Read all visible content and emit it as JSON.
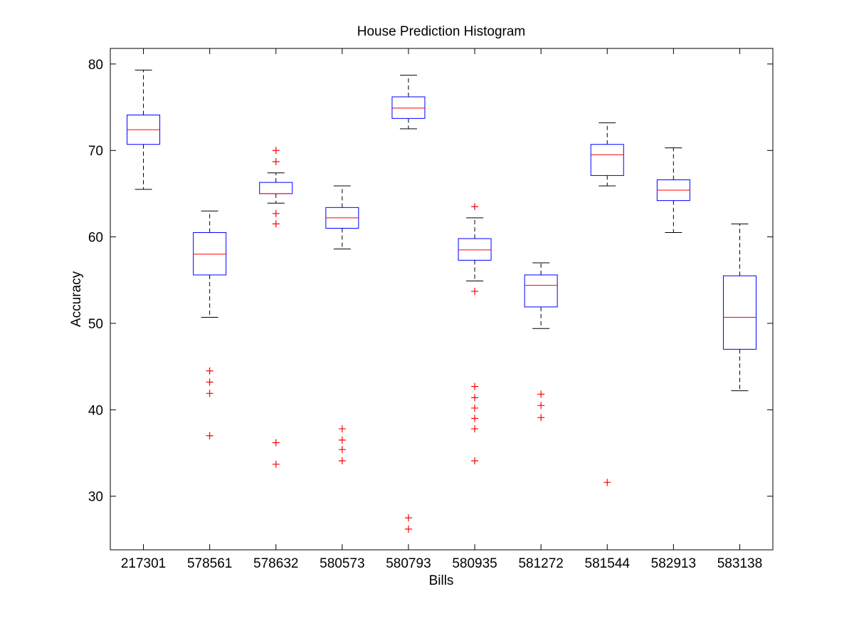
{
  "chart_data": {
    "type": "boxplot",
    "title": "House Prediction Histogram",
    "xlabel": "Bills",
    "ylabel": "Accuracy",
    "ylim": [
      23.8,
      81.8
    ],
    "yticks": [
      30,
      40,
      50,
      60,
      70,
      80
    ],
    "grid": false,
    "categories": [
      "217301",
      "578561",
      "578632",
      "580573",
      "580793",
      "580935",
      "581272",
      "581544",
      "582913",
      "583138"
    ],
    "boxes": [
      {
        "whisker_low": 65.5,
        "q1": 70.7,
        "median": 72.4,
        "q3": 74.1,
        "whisker_high": 79.3,
        "outliers": []
      },
      {
        "whisker_low": 50.7,
        "q1": 55.6,
        "median": 58.0,
        "q3": 60.5,
        "whisker_high": 63.0,
        "outliers": [
          44.5,
          43.2,
          41.9,
          37.0
        ]
      },
      {
        "whisker_low": 63.9,
        "q1": 65.0,
        "median": 65.0,
        "q3": 66.3,
        "whisker_high": 67.4,
        "outliers": [
          70.0,
          68.7,
          62.7,
          61.5,
          36.2,
          33.7
        ]
      },
      {
        "whisker_low": 58.6,
        "q1": 61.0,
        "median": 62.2,
        "q3": 63.4,
        "whisker_high": 65.9,
        "outliers": [
          37.8,
          36.5,
          35.4,
          34.1
        ]
      },
      {
        "whisker_low": 72.5,
        "q1": 73.7,
        "median": 74.9,
        "q3": 76.2,
        "whisker_high": 78.7,
        "outliers": [
          27.5,
          26.2
        ]
      },
      {
        "whisker_low": 54.9,
        "q1": 57.3,
        "median": 58.5,
        "q3": 59.8,
        "whisker_high": 62.2,
        "outliers": [
          63.5,
          53.7,
          42.7,
          41.4,
          40.2,
          39.0,
          37.8,
          34.1
        ]
      },
      {
        "whisker_low": 49.4,
        "q1": 51.9,
        "median": 54.4,
        "q3": 55.6,
        "whisker_high": 57.0,
        "outliers": [
          41.8,
          40.5,
          39.1
        ]
      },
      {
        "whisker_low": 65.9,
        "q1": 67.1,
        "median": 69.5,
        "q3": 70.7,
        "whisker_high": 73.2,
        "outliers": [
          31.6
        ]
      },
      {
        "whisker_low": 60.5,
        "q1": 64.2,
        "median": 65.4,
        "q3": 66.6,
        "whisker_high": 70.3,
        "outliers": []
      },
      {
        "whisker_low": 42.2,
        "q1": 47.0,
        "median": 50.7,
        "q3": 55.5,
        "whisker_high": 61.5,
        "outliers": []
      }
    ],
    "colors": {
      "box": "#0000ff",
      "median": "#ff0000",
      "whisker": "#000000",
      "outlier": "#ff0000",
      "axes": "#000000"
    }
  }
}
